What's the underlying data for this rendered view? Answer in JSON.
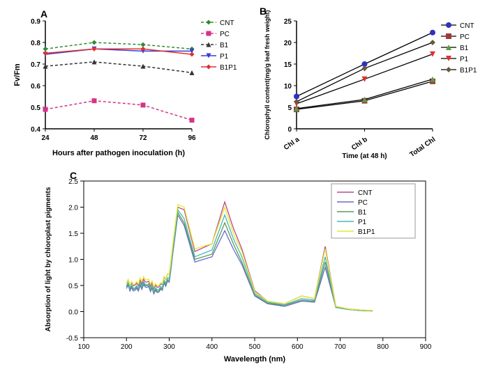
{
  "panelA": {
    "label": "A",
    "type": "line",
    "xlabel": "Hours after pathogen inoculation (h)",
    "ylabel": "Fv/Fm",
    "label_fontsize": 11,
    "xticks": [
      "24",
      "48",
      "72",
      "96"
    ],
    "yticks": [
      "0.4",
      "0.5",
      "0.6",
      "0.7",
      "0.8",
      "0.9"
    ],
    "ylim": [
      0.4,
      0.9
    ],
    "xlim": [
      0.5,
      4.5
    ],
    "series": [
      {
        "name": "CNT",
        "color": "#2e8b2e",
        "dash": "4,3",
        "marker": "diamond",
        "values": [
          0.77,
          0.8,
          0.79,
          0.77
        ]
      },
      {
        "name": "PC",
        "color": "#d63384",
        "dash": "4,3",
        "marker": "square",
        "values": [
          0.49,
          0.53,
          0.51,
          0.44
        ]
      },
      {
        "name": "B1",
        "color": "#333333",
        "dash": "4,3",
        "marker": "triangle",
        "values": [
          0.69,
          0.71,
          0.69,
          0.66
        ]
      },
      {
        "name": "P1",
        "color": "#3a3ad6",
        "dash": "none",
        "marker": "tri-down",
        "values": [
          0.745,
          0.77,
          0.76,
          0.76
        ]
      },
      {
        "name": "B1P1",
        "color": "#e03030",
        "dash": "none",
        "marker": "diamond",
        "values": [
          0.75,
          0.77,
          0.77,
          0.745
        ]
      }
    ],
    "background": "#ffffff",
    "axis_color": "#000000"
  },
  "panelB": {
    "label": "B",
    "type": "line",
    "xlabel": "Time (at 48 h)",
    "ylabel": "Chlorophyll content(mg/g leaf fresh weight)",
    "label_fontsize": 10,
    "xticks": [
      "Chl a",
      "Chl b",
      "Total Chl"
    ],
    "yticks": [
      "0",
      "5",
      "10",
      "15",
      "20",
      "25"
    ],
    "ylim": [
      0,
      25
    ],
    "series": [
      {
        "name": "CNT",
        "color": "#3030c0",
        "marker": "circle",
        "values": [
          7.5,
          15.0,
          22.3
        ]
      },
      {
        "name": "PC",
        "color": "#a03a3a",
        "marker": "square",
        "values": [
          4.5,
          6.5,
          11.0
        ]
      },
      {
        "name": "B1",
        "color": "#5a9a4a",
        "marker": "triangle",
        "values": [
          4.7,
          6.8,
          11.5
        ]
      },
      {
        "name": "P1",
        "color": "#e03030",
        "marker": "tri-down",
        "values": [
          5.8,
          11.5,
          17.3
        ]
      },
      {
        "name": "B1P1",
        "color": "#6a5a3a",
        "marker": "diamond",
        "values": [
          6.3,
          14.0,
          20.0
        ]
      }
    ],
    "line_color": "#000000",
    "background": "#ffffff"
  },
  "panelC": {
    "label": "C",
    "type": "spectrum",
    "xlabel": "Wavelength (nm)",
    "ylabel": "Absorption of light by chloroplast pigments",
    "label_fontsize": 11,
    "xticks": [
      "100",
      "200",
      "300",
      "400",
      "500",
      "600",
      "700",
      "800",
      "900"
    ],
    "yticks": [
      "-0.5",
      "0.0",
      "0.5",
      "1.0",
      "1.5",
      "2.0",
      "2.5"
    ],
    "xlim": [
      100,
      900
    ],
    "ylim": [
      -0.5,
      2.5
    ],
    "series": [
      {
        "name": "CNT",
        "color": "#b84a8a"
      },
      {
        "name": "PC",
        "color": "#6a6ad0"
      },
      {
        "name": "B1",
        "color": "#5a9a5a"
      },
      {
        "name": "P1",
        "color": "#4ab8b0"
      },
      {
        "name": "B1P1",
        "color": "#e8e830"
      }
    ],
    "spectrum_nodes_x": [
      200,
      240,
      280,
      300,
      320,
      335,
      360,
      400,
      430,
      450,
      470,
      500,
      530,
      570,
      610,
      640,
      665,
      690,
      720,
      750,
      780
    ],
    "spectrum_scales": {
      "CNT": [
        0.55,
        0.55,
        0.5,
        0.7,
        2.0,
        1.95,
        1.15,
        1.3,
        2.1,
        1.6,
        1.2,
        0.4,
        0.2,
        0.15,
        0.3,
        0.25,
        1.25,
        0.1,
        0.05,
        0.03,
        0.02
      ],
      "PC": [
        0.45,
        0.45,
        0.4,
        0.55,
        1.85,
        1.65,
        0.95,
        1.05,
        1.55,
        1.2,
        0.9,
        0.3,
        0.15,
        0.1,
        0.2,
        0.18,
        0.85,
        0.08,
        0.04,
        0.02,
        0.01
      ],
      "B1": [
        0.48,
        0.48,
        0.42,
        0.58,
        1.9,
        1.7,
        1.0,
        1.1,
        1.7,
        1.3,
        0.95,
        0.32,
        0.16,
        0.12,
        0.22,
        0.2,
        0.95,
        0.08,
        0.04,
        0.02,
        0.01
      ],
      "P1": [
        0.5,
        0.5,
        0.45,
        0.62,
        1.95,
        1.78,
        1.05,
        1.18,
        1.85,
        1.4,
        1.05,
        0.35,
        0.18,
        0.13,
        0.25,
        0.22,
        1.05,
        0.09,
        0.045,
        0.025,
        0.015
      ],
      "B1P1": [
        0.55,
        0.6,
        0.52,
        0.7,
        2.05,
        2.0,
        1.2,
        1.3,
        2.0,
        1.5,
        1.15,
        0.38,
        0.2,
        0.15,
        0.3,
        0.25,
        1.2,
        0.1,
        0.05,
        0.03,
        0.02
      ]
    },
    "legend_box": {
      "stroke": "#999999",
      "fill": "#ffffff"
    }
  }
}
